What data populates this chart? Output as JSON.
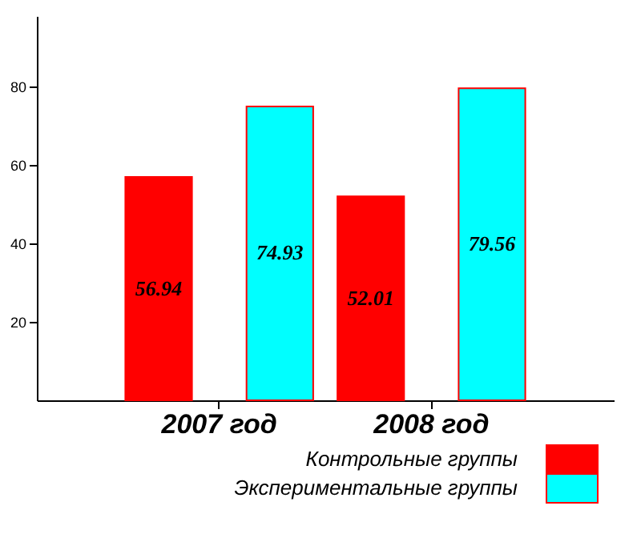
{
  "chart_data": {
    "type": "bar",
    "categories": [
      "2007 год",
      "2008 год"
    ],
    "series": [
      {
        "name": "Контрольные группы",
        "color": "#ff0000",
        "values": [
          56.94,
          52.01
        ]
      },
      {
        "name": "Экспериментальные группы",
        "color": "#00ffff",
        "values": [
          74.93,
          79.56
        ]
      }
    ],
    "ylim": [
      0,
      98
    ],
    "yticks": [
      20,
      40,
      60,
      80
    ],
    "grid": false,
    "legend": "bottom",
    "data_labels": true
  }
}
